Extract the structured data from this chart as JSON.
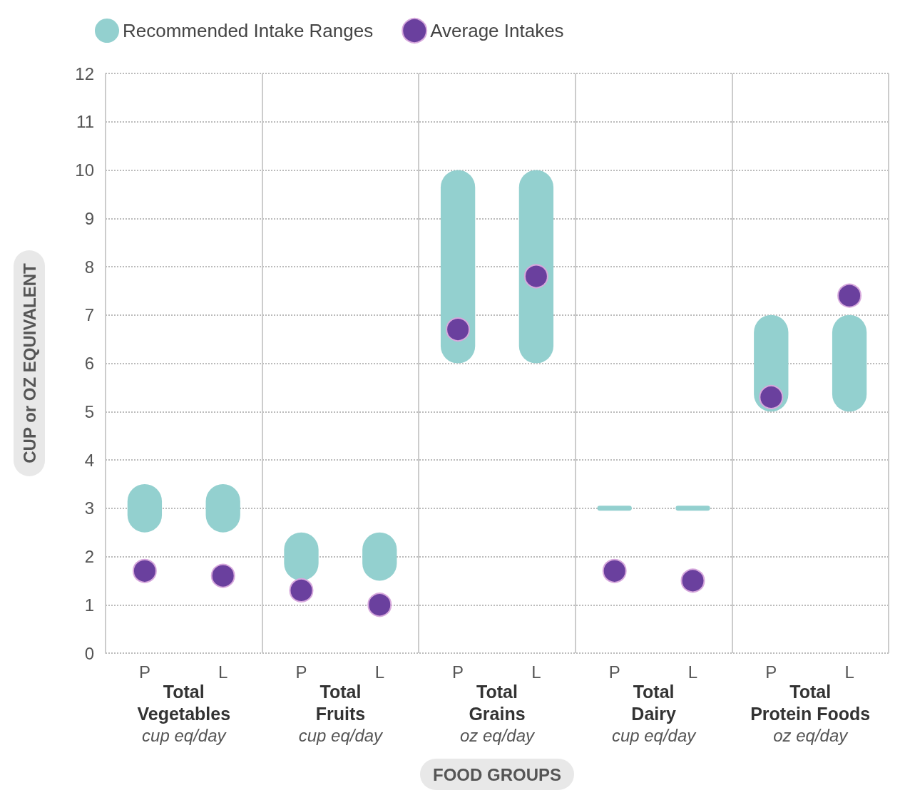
{
  "chart_data": {
    "type": "bar",
    "xlabel": "FOOD GROUPS",
    "ylabel": "CUP or OZ EQUIVALENT",
    "categories": [
      "P",
      "L",
      "P",
      "L",
      "P",
      "L",
      "P",
      "L",
      "P",
      "L"
    ],
    "series": [
      {
        "name": "Recommended Intake Ranges",
        "color": "#93d0cf",
        "base": [
          2.5,
          2.5,
          1.5,
          1.5,
          6,
          6,
          2.95,
          2.95,
          5,
          5
        ],
        "values": [
          1,
          1,
          1,
          1,
          4,
          4,
          0.1,
          0.1,
          2,
          2
        ]
      },
      {
        "name": "Average Intakes",
        "type": "scatter",
        "marker": "circle",
        "color": "#6a409e",
        "values": [
          1.7,
          1.6,
          1.3,
          1.0,
          6.7,
          7.8,
          1.7,
          1.5,
          5.3,
          7.4
        ]
      }
    ],
    "ylim": [
      0,
      12
    ],
    "yticks": [
      0,
      1,
      2,
      3,
      4,
      5,
      6,
      7,
      8,
      9,
      10,
      11,
      12
    ],
    "grid": "y",
    "legend": "top left",
    "annotations": [
      "Total\nVegetables",
      "cup eq/day",
      "Total\nFruits",
      "cup eq/day",
      "Total\nGrains",
      "oz eq/day",
      "Total\nDairy",
      "cup eq/day",
      "Total\nProtein Foods",
      "oz eq/day"
    ]
  }
}
